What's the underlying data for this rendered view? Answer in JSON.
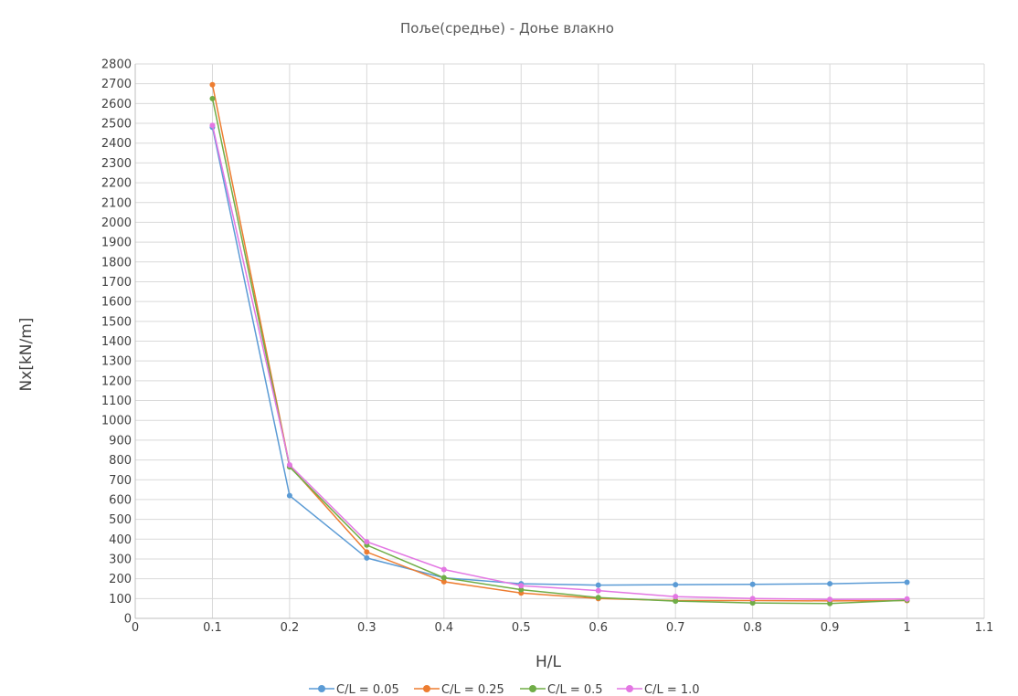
{
  "chart_data": {
    "type": "line",
    "title": "Поље(средње) - Доње влакно",
    "xlabel": "H/L",
    "ylabel": "Nx[kN/m]",
    "xlim": [
      0,
      1.1
    ],
    "ylim": [
      0,
      2800
    ],
    "x_ticks": [
      "0",
      "0.1",
      "0.2",
      "0.3",
      "0.4",
      "0.5",
      "0.6",
      "0.7",
      "0.8",
      "0.9",
      "1",
      "1.1"
    ],
    "y_ticks": [
      "0",
      "100",
      "200",
      "300",
      "400",
      "500",
      "600",
      "700",
      "800",
      "900",
      "1000",
      "1100",
      "1200",
      "1300",
      "1400",
      "1500",
      "1600",
      "1700",
      "1800",
      "1900",
      "2000",
      "2100",
      "2200",
      "2300",
      "2400",
      "2500",
      "2600",
      "2700",
      "2800"
    ],
    "grid": true,
    "legend_position": "bottom",
    "x": [
      0.1,
      0.2,
      0.3,
      0.4,
      0.5,
      0.6,
      0.7,
      0.8,
      0.9,
      1.0
    ],
    "series": [
      {
        "name": "C/L = 0.05",
        "color": "#5b9bd5",
        "values": [
          2480,
          620,
          305,
          205,
          175,
          168,
          170,
          172,
          175,
          182
        ]
      },
      {
        "name": "C/L = 0.25",
        "color": "#ed7d31",
        "values": [
          2695,
          770,
          335,
          185,
          128,
          100,
          90,
          90,
          88,
          90
        ]
      },
      {
        "name": "C/L = 0.5",
        "color": "#70ad47",
        "values": [
          2625,
          765,
          370,
          205,
          145,
          105,
          87,
          78,
          75,
          92
        ]
      },
      {
        "name": "C/L = 1.0",
        "color": "#e377e3",
        "values": [
          2490,
          775,
          387,
          247,
          165,
          140,
          110,
          100,
          96,
          98
        ]
      }
    ]
  }
}
